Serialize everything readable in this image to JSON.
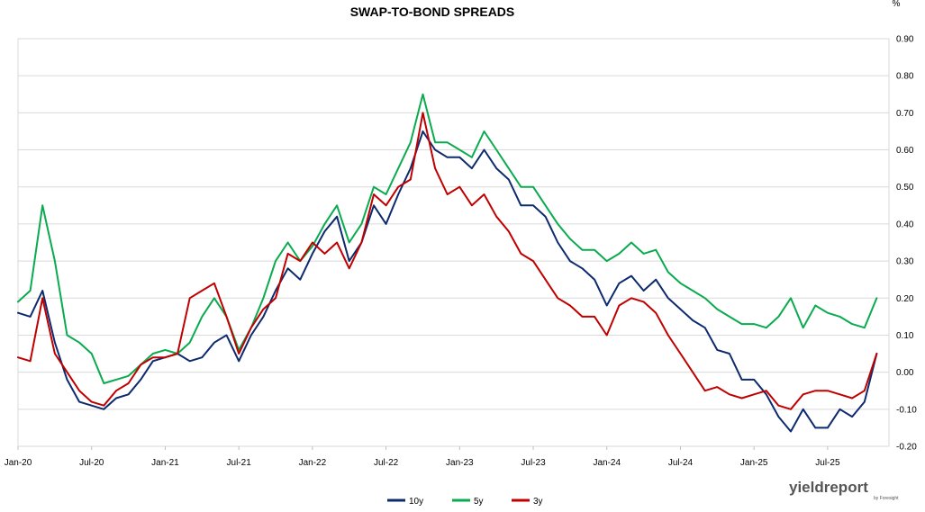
{
  "chart_data": {
    "type": "line",
    "title": "SWAP-TO-BOND SPREADS",
    "ylabel": "%",
    "xlabel": "",
    "ylim": [
      -0.2,
      0.9
    ],
    "yticks": [
      "-0.20",
      "-0.10",
      "0.00",
      "0.10",
      "0.20",
      "0.30",
      "0.40",
      "0.50",
      "0.60",
      "0.70",
      "0.80",
      "0.90"
    ],
    "xlim": [
      "2020-01",
      "2025-12"
    ],
    "xticks": [
      "Jan-20",
      "Jul-20",
      "Jan-21",
      "Jul-21",
      "Jan-22",
      "Jul-22",
      "Jan-23",
      "Jul-23",
      "Jan-24",
      "Jul-24",
      "Jan-25",
      "Jul-25"
    ],
    "y_axis_position": "right",
    "grid": "horizontal",
    "legend_position": "bottom",
    "series": [
      {
        "name": "10y",
        "color": "#0d2a6e",
        "x": [
          "2020-01",
          "2020-02",
          "2020-03",
          "2020-04",
          "2020-05",
          "2020-06",
          "2020-07",
          "2020-08",
          "2020-09",
          "2020-10",
          "2020-11",
          "2020-12",
          "2021-01",
          "2021-02",
          "2021-03",
          "2021-04",
          "2021-05",
          "2021-06",
          "2021-07",
          "2021-08",
          "2021-09",
          "2021-10",
          "2021-11",
          "2021-12",
          "2022-01",
          "2022-02",
          "2022-03",
          "2022-04",
          "2022-05",
          "2022-06",
          "2022-07",
          "2022-08",
          "2022-09",
          "2022-10",
          "2022-11",
          "2022-12",
          "2023-01",
          "2023-02",
          "2023-03",
          "2023-04",
          "2023-05",
          "2023-06",
          "2023-07",
          "2023-08",
          "2023-09",
          "2023-10",
          "2023-11",
          "2023-12",
          "2024-01",
          "2024-02",
          "2024-03",
          "2024-04",
          "2024-05",
          "2024-06",
          "2024-07",
          "2024-08",
          "2024-09",
          "2024-10",
          "2024-11",
          "2024-12",
          "2025-01",
          "2025-02",
          "2025-03",
          "2025-04",
          "2025-05",
          "2025-06",
          "2025-07",
          "2025-08",
          "2025-09",
          "2025-10",
          "2025-11"
        ],
        "values": [
          0.16,
          0.15,
          0.22,
          0.08,
          -0.02,
          -0.08,
          -0.09,
          -0.1,
          -0.07,
          -0.06,
          -0.02,
          0.03,
          0.04,
          0.05,
          0.03,
          0.04,
          0.08,
          0.1,
          0.03,
          0.1,
          0.15,
          0.22,
          0.28,
          0.25,
          0.32,
          0.38,
          0.42,
          0.3,
          0.35,
          0.45,
          0.4,
          0.48,
          0.55,
          0.65,
          0.6,
          0.58,
          0.58,
          0.55,
          0.6,
          0.55,
          0.52,
          0.45,
          0.45,
          0.42,
          0.35,
          0.3,
          0.28,
          0.25,
          0.18,
          0.24,
          0.26,
          0.22,
          0.25,
          0.2,
          0.17,
          0.14,
          0.12,
          0.06,
          0.05,
          -0.02,
          -0.02,
          -0.06,
          -0.12,
          -0.16,
          -0.1,
          -0.15,
          -0.15,
          -0.1,
          -0.12,
          -0.08,
          0.05
        ]
      },
      {
        "name": "5y",
        "color": "#0aab4f",
        "x": [
          "2020-01",
          "2020-02",
          "2020-03",
          "2020-04",
          "2020-05",
          "2020-06",
          "2020-07",
          "2020-08",
          "2020-09",
          "2020-10",
          "2020-11",
          "2020-12",
          "2021-01",
          "2021-02",
          "2021-03",
          "2021-04",
          "2021-05",
          "2021-06",
          "2021-07",
          "2021-08",
          "2021-09",
          "2021-10",
          "2021-11",
          "2021-12",
          "2022-01",
          "2022-02",
          "2022-03",
          "2022-04",
          "2022-05",
          "2022-06",
          "2022-07",
          "2022-08",
          "2022-09",
          "2022-10",
          "2022-11",
          "2022-12",
          "2023-01",
          "2023-02",
          "2023-03",
          "2023-04",
          "2023-05",
          "2023-06",
          "2023-07",
          "2023-08",
          "2023-09",
          "2023-10",
          "2023-11",
          "2023-12",
          "2024-01",
          "2024-02",
          "2024-03",
          "2024-04",
          "2024-05",
          "2024-06",
          "2024-07",
          "2024-08",
          "2024-09",
          "2024-10",
          "2024-11",
          "2024-12",
          "2025-01",
          "2025-02",
          "2025-03",
          "2025-04",
          "2025-05",
          "2025-06",
          "2025-07",
          "2025-08",
          "2025-09",
          "2025-10",
          "2025-11"
        ],
        "values": [
          0.19,
          0.22,
          0.45,
          0.3,
          0.1,
          0.08,
          0.05,
          -0.03,
          -0.02,
          -0.01,
          0.02,
          0.05,
          0.06,
          0.05,
          0.08,
          0.15,
          0.2,
          0.15,
          0.06,
          0.12,
          0.2,
          0.3,
          0.35,
          0.3,
          0.34,
          0.4,
          0.45,
          0.35,
          0.4,
          0.5,
          0.48,
          0.55,
          0.62,
          0.75,
          0.62,
          0.62,
          0.6,
          0.58,
          0.65,
          0.6,
          0.55,
          0.5,
          0.5,
          0.45,
          0.4,
          0.36,
          0.33,
          0.33,
          0.3,
          0.32,
          0.35,
          0.32,
          0.33,
          0.27,
          0.24,
          0.22,
          0.2,
          0.17,
          0.15,
          0.13,
          0.13,
          0.12,
          0.15,
          0.2,
          0.12,
          0.18,
          0.16,
          0.15,
          0.13,
          0.12,
          0.2
        ]
      },
      {
        "name": "3y",
        "color": "#c00000",
        "x": [
          "2020-01",
          "2020-02",
          "2020-03",
          "2020-04",
          "2020-05",
          "2020-06",
          "2020-07",
          "2020-08",
          "2020-09",
          "2020-10",
          "2020-11",
          "2020-12",
          "2021-01",
          "2021-02",
          "2021-03",
          "2021-04",
          "2021-05",
          "2021-06",
          "2021-07",
          "2021-08",
          "2021-09",
          "2021-10",
          "2021-11",
          "2021-12",
          "2022-01",
          "2022-02",
          "2022-03",
          "2022-04",
          "2022-05",
          "2022-06",
          "2022-07",
          "2022-08",
          "2022-09",
          "2022-10",
          "2022-11",
          "2022-12",
          "2023-01",
          "2023-02",
          "2023-03",
          "2023-04",
          "2023-05",
          "2023-06",
          "2023-07",
          "2023-08",
          "2023-09",
          "2023-10",
          "2023-11",
          "2023-12",
          "2024-01",
          "2024-02",
          "2024-03",
          "2024-04",
          "2024-05",
          "2024-06",
          "2024-07",
          "2024-08",
          "2024-09",
          "2024-10",
          "2024-11",
          "2024-12",
          "2025-01",
          "2025-02",
          "2025-03",
          "2025-04",
          "2025-05",
          "2025-06",
          "2025-07",
          "2025-08",
          "2025-09",
          "2025-10",
          "2025-11"
        ],
        "values": [
          0.04,
          0.03,
          0.2,
          0.05,
          0.0,
          -0.05,
          -0.08,
          -0.09,
          -0.05,
          -0.03,
          0.02,
          0.04,
          0.04,
          0.05,
          0.2,
          0.22,
          0.24,
          0.15,
          0.05,
          0.12,
          0.17,
          0.2,
          0.32,
          0.3,
          0.35,
          0.32,
          0.35,
          0.28,
          0.35,
          0.48,
          0.45,
          0.5,
          0.52,
          0.7,
          0.55,
          0.48,
          0.5,
          0.45,
          0.48,
          0.42,
          0.38,
          0.32,
          0.3,
          0.25,
          0.2,
          0.18,
          0.15,
          0.15,
          0.1,
          0.18,
          0.2,
          0.19,
          0.16,
          0.1,
          0.05,
          0.0,
          -0.05,
          -0.04,
          -0.06,
          -0.07,
          -0.06,
          -0.05,
          -0.09,
          -0.1,
          -0.06,
          -0.05,
          -0.05,
          -0.06,
          -0.07,
          -0.05,
          0.05
        ]
      }
    ]
  },
  "logo": {
    "brand": "yieldreport",
    "sub": "by Foresight"
  }
}
